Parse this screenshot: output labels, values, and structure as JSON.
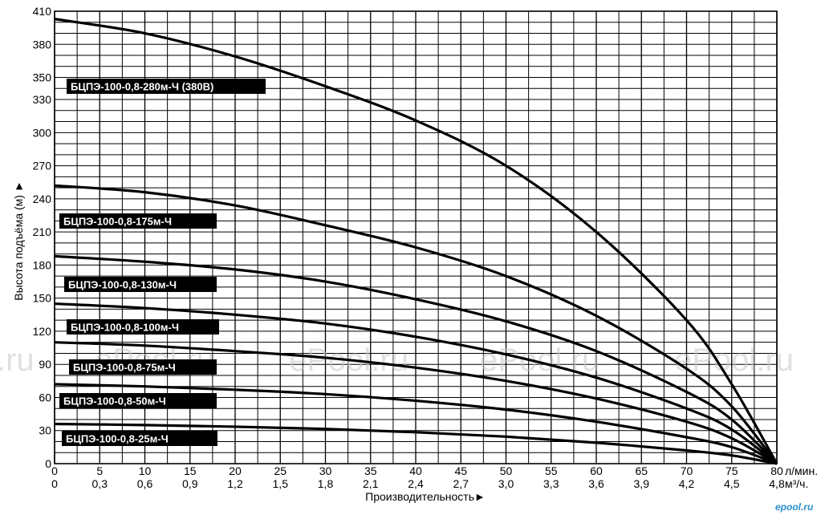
{
  "chart_data": {
    "type": "line",
    "x": [
      0,
      5,
      10,
      15,
      20,
      25,
      30,
      35,
      40,
      45,
      50,
      55,
      60,
      65,
      70,
      75,
      80
    ],
    "x_unit_label": "л/мин.",
    "x2_ticks": [
      "0",
      "0,3",
      "0,6",
      "0,9",
      "1,2",
      "1,5",
      "1,8",
      "2,1",
      "2,4",
      "2,7",
      "3,0",
      "3,3",
      "3,6",
      "3,9",
      "4,2",
      "4,5",
      "4,8"
    ],
    "x2_unit_label": "м³/ч.",
    "y_ticks": [
      0,
      30,
      60,
      90,
      120,
      150,
      180,
      210,
      240,
      270,
      300,
      330,
      350,
      380,
      410
    ],
    "xlim": [
      0,
      80
    ],
    "ylim": [
      0,
      410
    ],
    "xlabel": "Производительность►",
    "ylabel": "Высота подъёма (м) ►",
    "grid": true,
    "series": [
      {
        "name": "БЦПЭ-100-0,8-280м-Ч (380В)",
        "x": [
          0,
          10,
          20,
          30,
          40,
          50,
          60,
          70,
          75,
          80
        ],
        "values": [
          403,
          390,
          369,
          342,
          311,
          270,
          210,
          130,
          72,
          0
        ]
      },
      {
        "name": "БЦПЭ-100-0,8-175м-Ч",
        "x": [
          0,
          10,
          20,
          30,
          40,
          50,
          60,
          70,
          75,
          80
        ],
        "values": [
          252,
          246,
          234,
          216,
          196,
          170,
          134,
          86,
          52,
          0
        ]
      },
      {
        "name": "БЦПЭ-100-0,8-130м-Ч",
        "x": [
          0,
          10,
          20,
          30,
          40,
          50,
          60,
          70,
          75,
          80
        ],
        "values": [
          188,
          183,
          176,
          165,
          149,
          129,
          102,
          65,
          40,
          0
        ]
      },
      {
        "name": "БЦПЭ-100-0,8-100м-Ч",
        "x": [
          0,
          10,
          20,
          30,
          40,
          50,
          60,
          70,
          75,
          80
        ],
        "values": [
          145,
          141,
          135,
          127,
          115,
          99,
          78,
          50,
          31,
          0
        ]
      },
      {
        "name": "БЦПЭ-100-0,8-75м-Ч",
        "x": [
          0,
          10,
          20,
          30,
          40,
          50,
          60,
          70,
          75,
          80
        ],
        "values": [
          110,
          107,
          102,
          96,
          87,
          75,
          59,
          38,
          23,
          0
        ]
      },
      {
        "name": "БЦПЭ-100-0,8-50м-Ч",
        "x": [
          0,
          10,
          20,
          30,
          40,
          50,
          60,
          70,
          75,
          80
        ],
        "values": [
          72,
          70,
          67,
          63,
          57,
          49,
          38,
          24,
          15,
          0
        ]
      },
      {
        "name": "БЦПЭ-100-0,8-25м-Ч",
        "x": [
          0,
          10,
          20,
          30,
          40,
          50,
          60,
          70,
          75,
          80
        ],
        "values": [
          36,
          35,
          33.5,
          31.5,
          28.5,
          24.5,
          19,
          12,
          7.5,
          0
        ]
      }
    ]
  },
  "watermarks": [
    ".ru",
    "ePool.ru",
    "ePool.ru",
    "ePool.ru",
    "ePool.ru"
  ],
  "site_label": "epool.ru"
}
